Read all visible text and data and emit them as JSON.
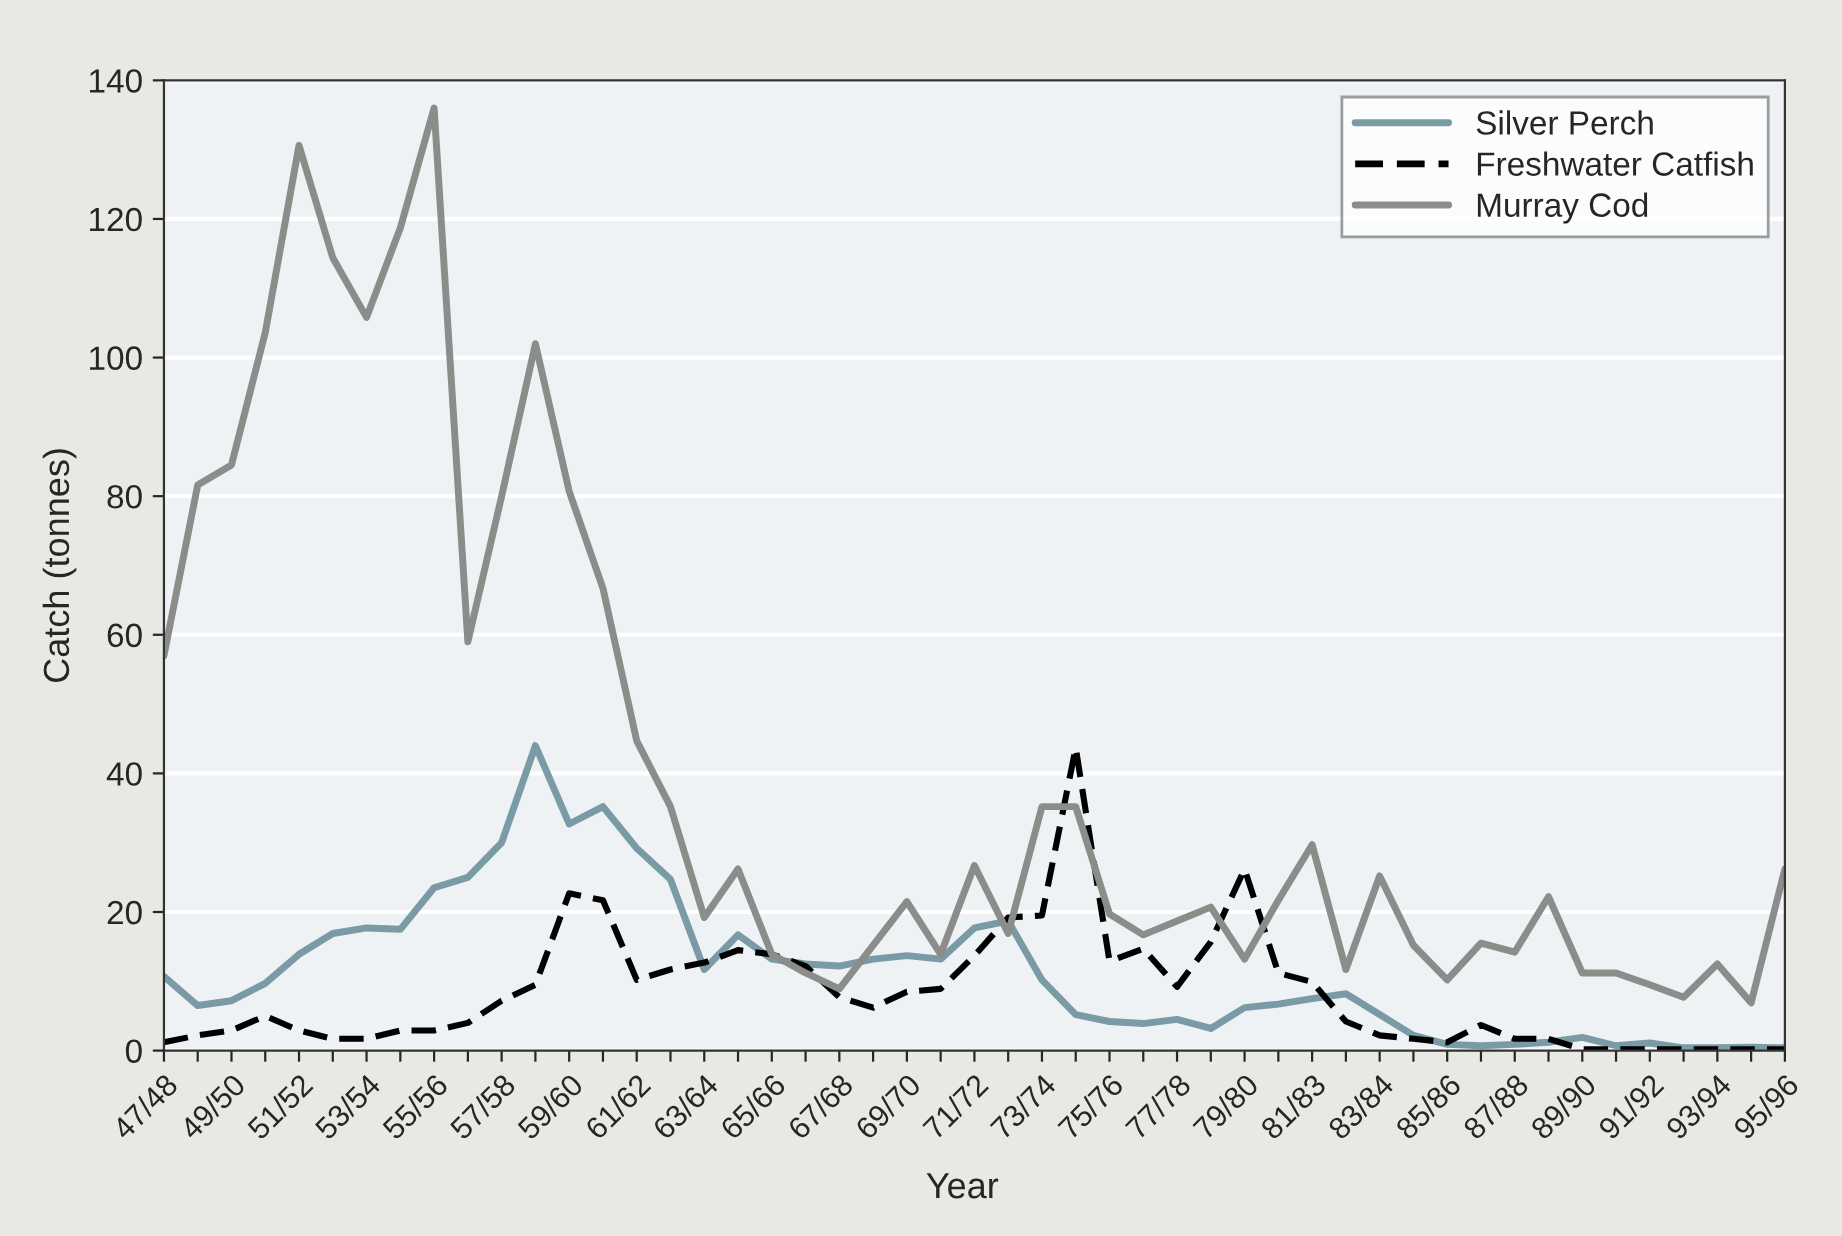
{
  "chart_data": {
    "type": "line",
    "xlabel": "Year",
    "ylabel": "Catch (tonnes)",
    "categories": [
      "47/48",
      null,
      "49/50",
      null,
      "51/52",
      null,
      "53/54",
      null,
      "55/56",
      null,
      "57/58",
      null,
      "59/60",
      null,
      "61/62",
      null,
      "63/64",
      null,
      "65/66",
      null,
      "67/68",
      null,
      "69/70",
      null,
      "71/72",
      null,
      "73/74",
      null,
      "75/76",
      null,
      "77/78",
      null,
      "79/80",
      null,
      "81/83",
      null,
      "83/84",
      null,
      "85/86",
      null,
      "87/88",
      null,
      "89/90",
      null,
      "91/92",
      null,
      "93/94",
      null,
      "95/96"
    ],
    "series": [
      {
        "name": "Silver Perch",
        "color": "#7a9ba6",
        "line_style": "solid",
        "values": [
          10.7,
          6.5,
          7.2,
          9.7,
          13.9,
          16.9,
          17.7,
          17.5,
          23.5,
          25,
          30,
          44,
          32.7,
          35.2,
          29.2,
          24.7,
          11.7,
          16.7,
          13.2,
          12.5,
          12.2,
          13.2,
          13.7,
          13.2,
          17.7,
          18.7,
          10.2,
          5.2,
          4.2,
          3.9,
          4.5,
          3.2,
          6.2,
          6.7,
          7.5,
          8.2,
          5.2,
          2.2,
          0.9,
          0.7,
          0.9,
          1.2,
          1.9,
          0.7,
          1.1,
          0.4,
          0.4,
          0.5,
          0.4
        ]
      },
      {
        "name": "Freshwater Catfish",
        "color": "#000000",
        "line_style": "dashed",
        "values": [
          1.2,
          2.2,
          2.9,
          5,
          2.9,
          1.7,
          1.7,
          2.9,
          2.9,
          4,
          7.2,
          9.5,
          22.7,
          21.7,
          10.2,
          11.7,
          12.7,
          14.5,
          13.9,
          12.2,
          7.7,
          6.2,
          8.5,
          8.9,
          13.7,
          19.2,
          19.5,
          43.7,
          12.9,
          14.7,
          9.2,
          15.7,
          26.2,
          11.2,
          9.9,
          4.2,
          2.2,
          1.7,
          1.2,
          3.7,
          1.7,
          1.7,
          0.2,
          0.2,
          0.2,
          0.2,
          0.2,
          0.2,
          0.2
        ]
      },
      {
        "name": "Murray Cod",
        "color": "#8a8d8a",
        "line_style": "solid",
        "values": [
          57,
          81.6,
          84.5,
          103.6,
          130.6,
          114.4,
          105.8,
          118.7,
          136,
          59,
          80,
          102,
          80.7,
          66.7,
          44.7,
          35.2,
          19.2,
          26.2,
          13.9,
          11.2,
          8.9,
          15.2,
          21.5,
          13.9,
          26.7,
          16.9,
          35.2,
          35.2,
          19.7,
          16.7,
          18.7,
          20.7,
          13.2,
          21.7,
          29.7,
          11.7,
          25.2,
          15.2,
          10.2,
          15.5,
          14.2,
          22.2,
          11.2,
          11.2,
          9.5,
          7.7,
          12.5,
          6.9,
          26.2
        ]
      }
    ],
    "ylim": [
      0,
      140
    ],
    "yticks": [
      0,
      20,
      40,
      60,
      80,
      100,
      120,
      140
    ],
    "grid": "y",
    "legend": "top right"
  }
}
